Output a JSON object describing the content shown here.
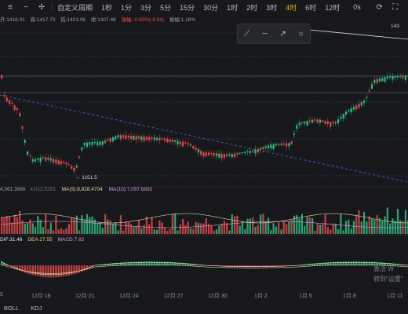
{
  "toolbar": {
    "left_icons": [
      "menu-icon",
      "minus-icon",
      "crosshair-icon"
    ],
    "custom_period": "自定义周期",
    "periods": [
      "1秒",
      "1分",
      "3分",
      "5分",
      "15分",
      "30分",
      "1时",
      "2时",
      "3时",
      "4时",
      "6时",
      "12时"
    ],
    "active_period": "4时",
    "right_labels": [
      "0s"
    ],
    "right_icons": [
      "refresh-icon",
      "fullscreen-icon"
    ]
  },
  "info": {
    "open": "开:1416.01",
    "high": "高:1417.70",
    "low": "低:1401.06",
    "close": "收:1407.48",
    "change": "涨幅:-0.60%(-8.54)",
    "amplitude": "振幅:1.18%"
  },
  "drawing_tools": [
    "line-icon",
    "dashed-line-icon",
    "ray-icon",
    "circle-icon"
  ],
  "price_labels": {
    "top_right": "143",
    "low_marker": "← 1151.5"
  },
  "volume_info": {
    "volume": "4,061.3866",
    "volume_ma_label": "4,012.5391",
    "ma5": "MA(5):8,828.4704",
    "ma10": "MA(10):7,097.6892"
  },
  "macd_info": {
    "dif": "DIF:31.46",
    "dea": "DEA:27.55",
    "macd": "MACD:7.82"
  },
  "x_axis": [
    "5",
    "12月 18",
    "12月 21",
    "12月 24",
    "12月 27",
    "12月 30",
    "1月 2",
    "1月 5",
    "1月 8",
    "1月 11"
  ],
  "bottom_bar": [
    "BOLL",
    "KDJ"
  ],
  "watermark": [
    "激活 W",
    "转到\"设置\""
  ],
  "colors": {
    "up": "#2fbd85",
    "down": "#e24a4a",
    "accent": "#f0b90b"
  }
}
